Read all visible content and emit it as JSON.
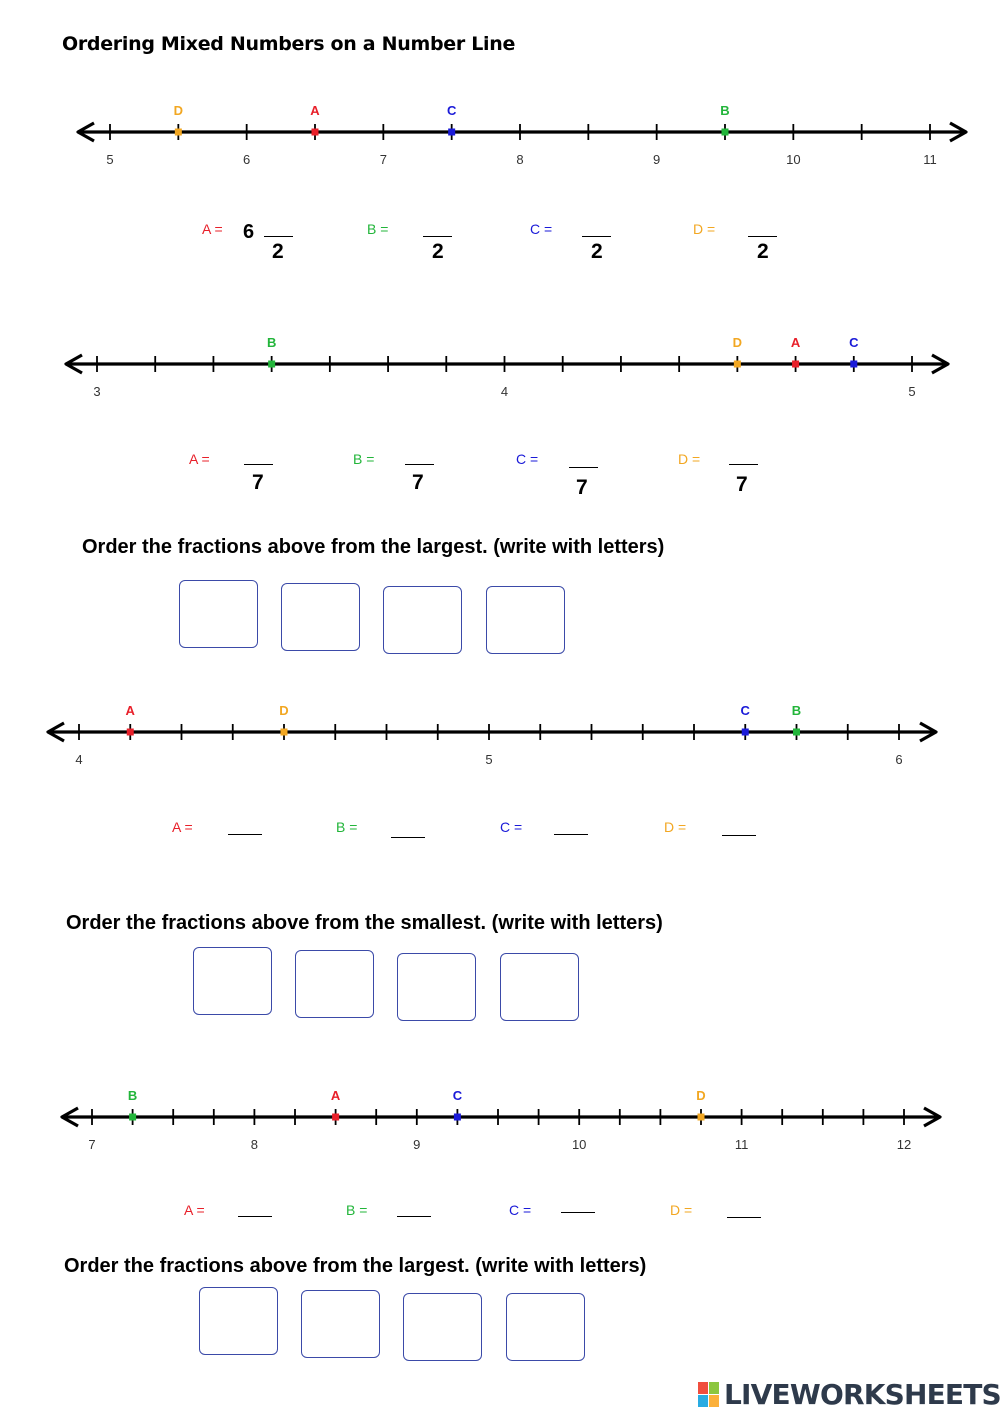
{
  "title": "Ordering Mixed Numbers on a Number Line",
  "colors": {
    "A": "#e8202a",
    "B": "#22b53a",
    "C": "#1a1ad8",
    "D": "#f2a722"
  },
  "lines": [
    {
      "min": 5,
      "max": 11,
      "step": 0.5,
      "labels": [
        "5",
        "6",
        "7",
        "8",
        "9",
        "10",
        "11"
      ],
      "points": [
        {
          "letter": "D",
          "value": 5.5
        },
        {
          "letter": "A",
          "value": 6.5
        },
        {
          "letter": "C",
          "value": 7.5
        },
        {
          "letter": "B",
          "value": 9.5
        }
      ],
      "answers": [
        {
          "label": "A =",
          "whole": "6",
          "den": "2"
        },
        {
          "label": "B =",
          "den": "2"
        },
        {
          "label": "C =",
          "den": "2"
        },
        {
          "label": "D =",
          "den": "2"
        }
      ]
    },
    {
      "min": 3,
      "max": 5,
      "step": 0.142857,
      "labels": [
        "3",
        "4",
        "5"
      ],
      "points": [
        {
          "letter": "B",
          "value": 3.428571
        },
        {
          "letter": "D",
          "value": 4.571429
        },
        {
          "letter": "A",
          "value": 4.714286
        },
        {
          "letter": "C",
          "value": 4.857143
        }
      ],
      "answers": [
        {
          "label": "A =",
          "den": "7"
        },
        {
          "label": "B =",
          "den": "7"
        },
        {
          "label": "C =",
          "den": "7"
        },
        {
          "label": "D =",
          "den": "7"
        }
      ]
    },
    {
      "min": 4,
      "max": 6,
      "step": 0.125,
      "labels": [
        "4",
        "5",
        "6"
      ],
      "points": [
        {
          "letter": "A",
          "value": 4.125
        },
        {
          "letter": "D",
          "value": 4.5
        },
        {
          "letter": "C",
          "value": 5.625
        },
        {
          "letter": "B",
          "value": 5.75
        }
      ],
      "answers": [
        {
          "label": "A ="
        },
        {
          "label": "B ="
        },
        {
          "label": "C ="
        },
        {
          "label": "D ="
        }
      ]
    },
    {
      "min": 7,
      "max": 12,
      "step": 0.25,
      "labels": [
        "7",
        "8",
        "9",
        "10",
        "11",
        "12"
      ],
      "points": [
        {
          "letter": "B",
          "value": 7.25
        },
        {
          "letter": "A",
          "value": 8.5
        },
        {
          "letter": "C",
          "value": 9.25
        },
        {
          "letter": "D",
          "value": 10.75
        }
      ],
      "answers": [
        {
          "label": "A ="
        },
        {
          "label": "B ="
        },
        {
          "label": "C ="
        },
        {
          "label": "D ="
        }
      ]
    }
  ],
  "questions": [
    "Order the fractions above from the largest. (write with letters)",
    "Order the fractions above from the smallest. (write with letters)",
    "Order the fractions above from the largest. (write with letters)"
  ],
  "brand": "LIVEWORKSHEETS"
}
